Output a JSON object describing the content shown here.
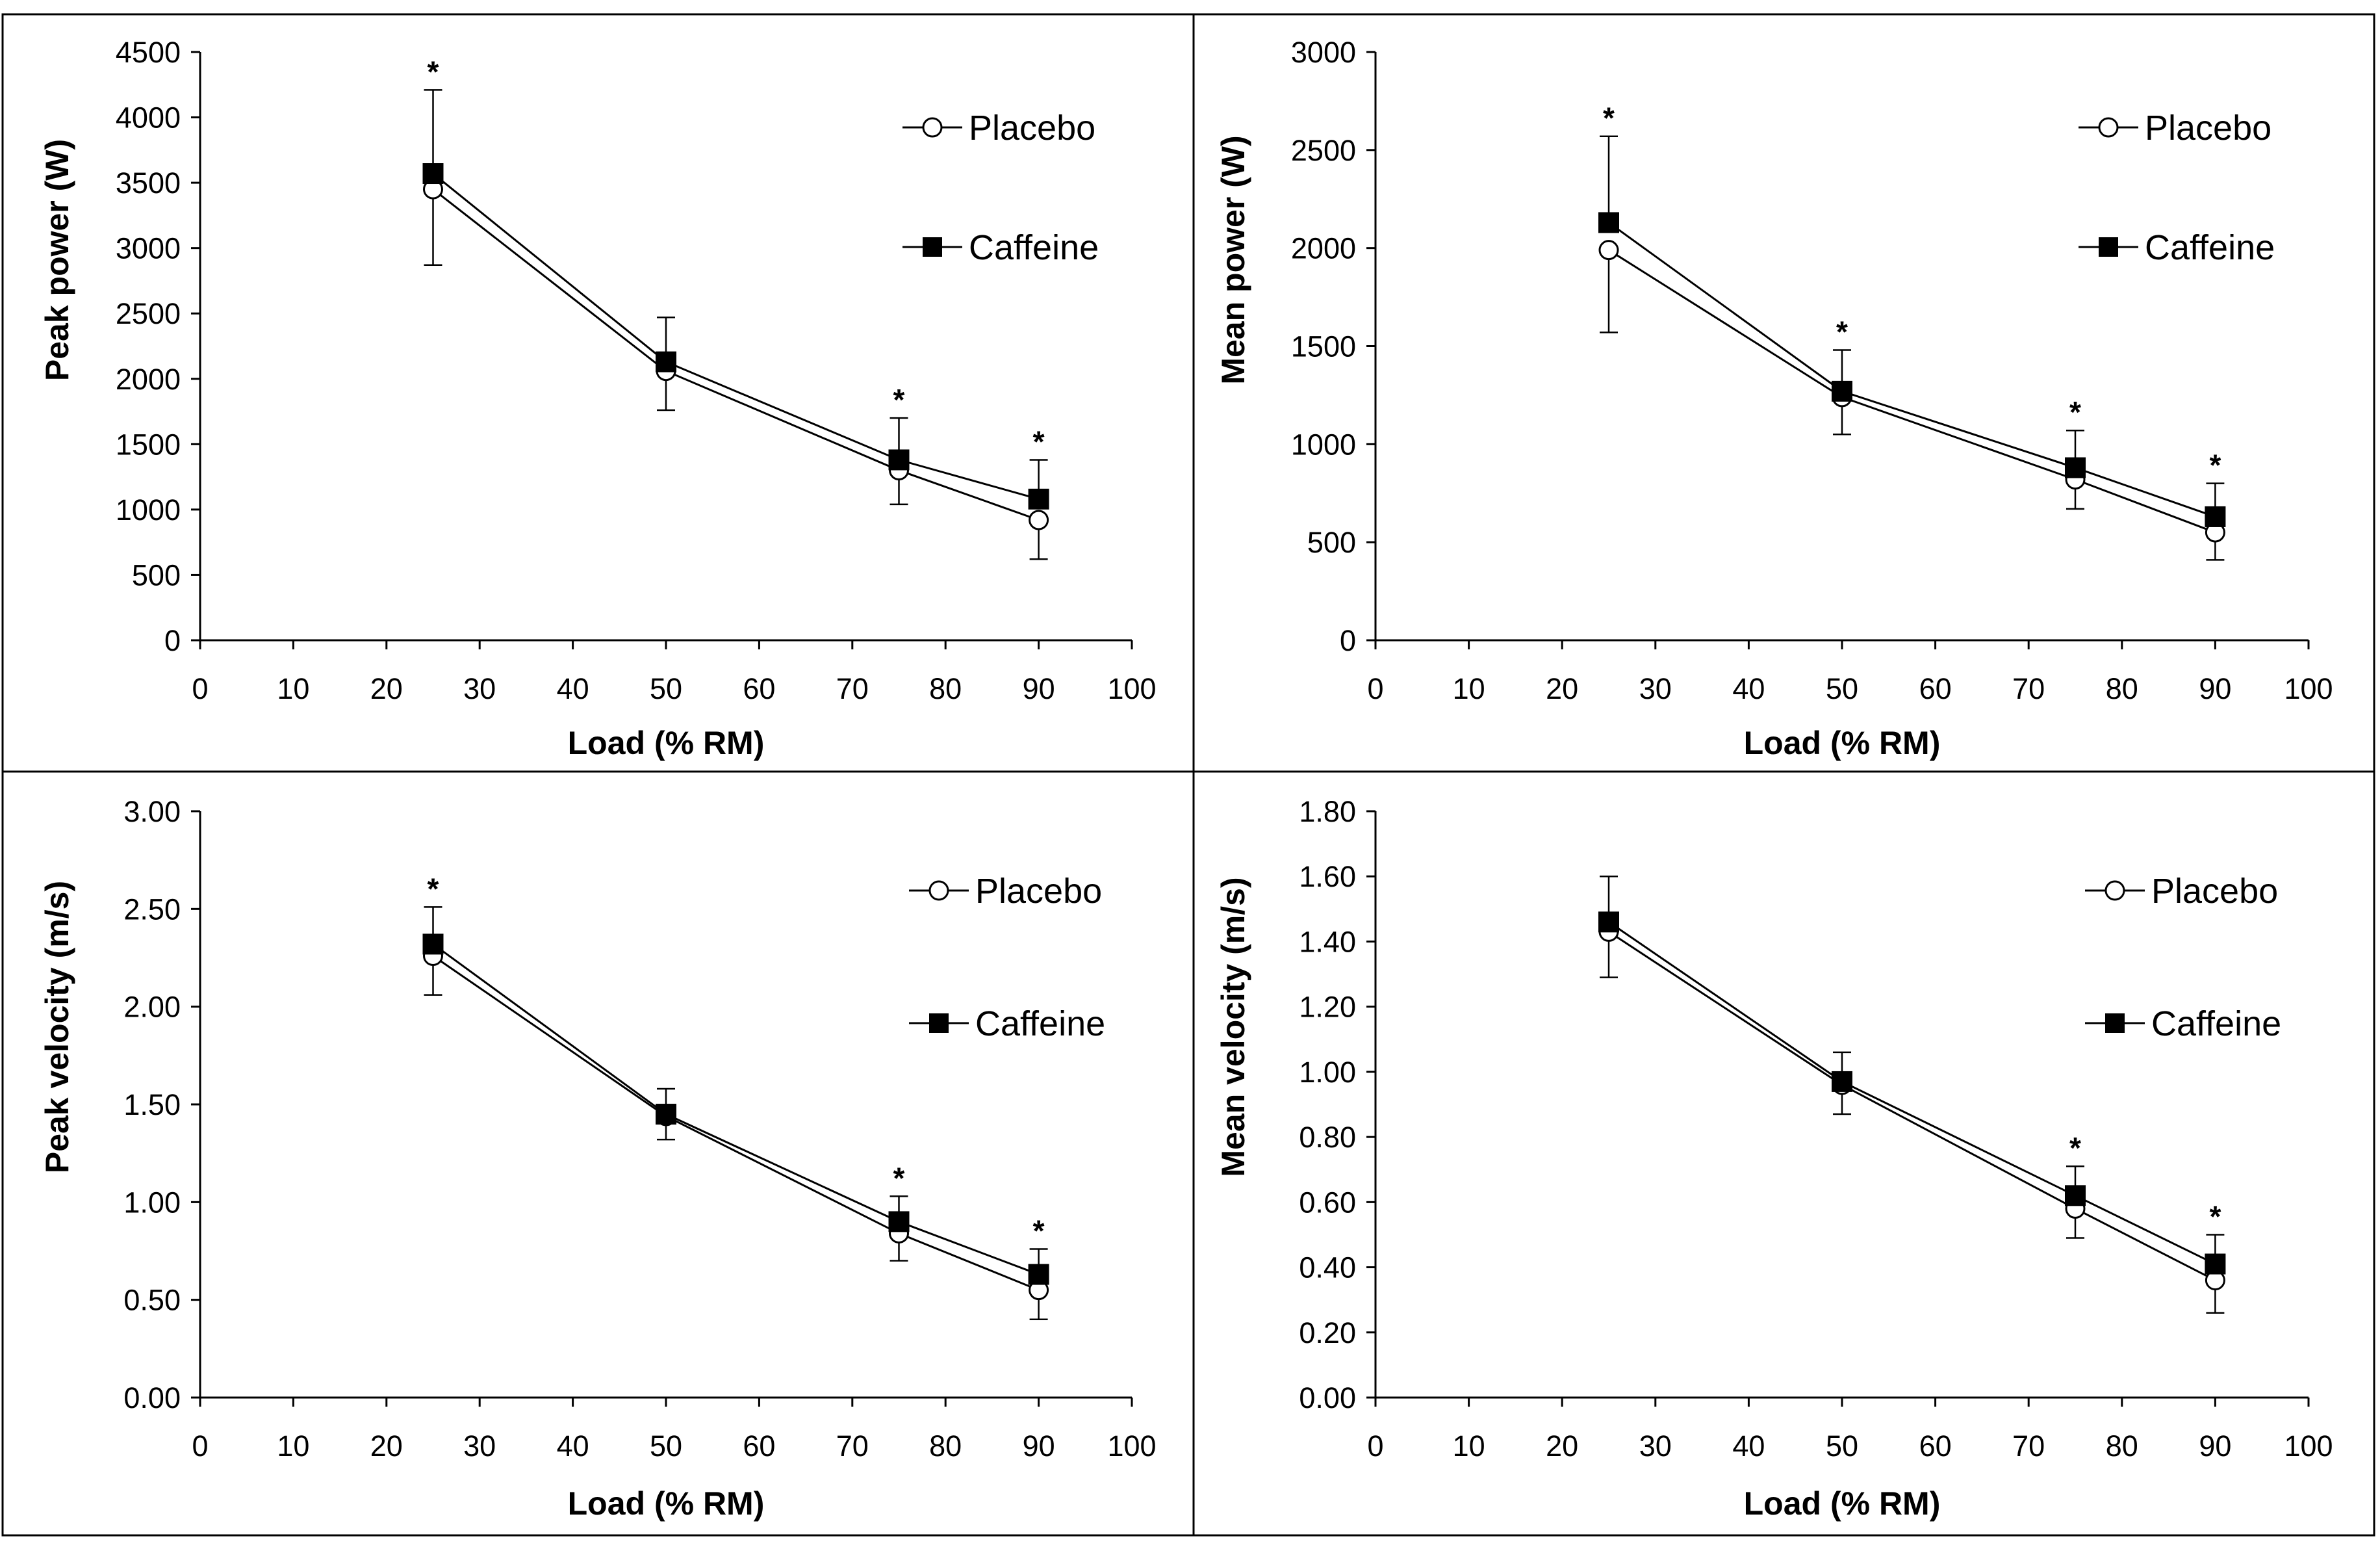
{
  "figure": {
    "marker_colors": {
      "placebo_fill": "#ffffff",
      "caffeine_fill": "#000000",
      "line": "#000000"
    }
  },
  "chart_data": [
    {
      "type": "line",
      "position": "top-left",
      "xlabel": "Load (% RM)",
      "ylabel": "Peak power (W)",
      "xlim": [
        0,
        100
      ],
      "ylim": [
        0,
        4500
      ],
      "x_ticks": [
        0,
        10,
        20,
        30,
        40,
        50,
        60,
        70,
        80,
        90,
        100
      ],
      "y_ticks": [
        0,
        500,
        1000,
        1500,
        2000,
        2500,
        3000,
        3500,
        4000,
        4500
      ],
      "y_tick_labels": [
        "0",
        "500",
        "1000",
        "1500",
        "2000",
        "2500",
        "3000",
        "3500",
        "4000",
        "4500"
      ],
      "legend_position": "top-right",
      "x": [
        25,
        50,
        75,
        90
      ],
      "series": [
        {
          "name": "Placebo",
          "marker": "open-circle",
          "values": [
            3450,
            2060,
            1300,
            920
          ],
          "error": [
            580,
            300,
            260,
            300
          ]
        },
        {
          "name": "Caffeine",
          "marker": "filled-square",
          "values": [
            3570,
            2130,
            1380,
            1080
          ],
          "error": [
            640,
            340,
            320,
            300
          ]
        }
      ],
      "significance_marker": "*",
      "significant_x": [
        25,
        75,
        90
      ]
    },
    {
      "type": "line",
      "position": "top-right",
      "xlabel": "Load (% RM)",
      "ylabel": "Mean power (W)",
      "xlim": [
        0,
        100
      ],
      "ylim": [
        0,
        3000
      ],
      "x_ticks": [
        0,
        10,
        20,
        30,
        40,
        50,
        60,
        70,
        80,
        90,
        100
      ],
      "y_ticks": [
        0,
        500,
        1000,
        1500,
        2000,
        2500,
        3000
      ],
      "y_tick_labels": [
        "0",
        "500",
        "1000",
        "1500",
        "2000",
        "2500",
        "3000"
      ],
      "legend_position": "top-right",
      "x": [
        25,
        50,
        75,
        90
      ],
      "series": [
        {
          "name": "Placebo",
          "marker": "open-circle",
          "values": [
            1990,
            1240,
            820,
            550
          ],
          "error": [
            420,
            190,
            150,
            140
          ]
        },
        {
          "name": "Caffeine",
          "marker": "filled-square",
          "values": [
            2130,
            1270,
            880,
            630
          ],
          "error": [
            440,
            210,
            190,
            170
          ]
        }
      ],
      "significance_marker": "*",
      "significant_x": [
        25,
        50,
        75,
        90
      ]
    },
    {
      "type": "line",
      "position": "bottom-left",
      "xlabel": "Load (% RM)",
      "ylabel": "Peak velocity (m/s)",
      "xlim": [
        0,
        100
      ],
      "ylim": [
        0,
        3
      ],
      "x_ticks": [
        0,
        10,
        20,
        30,
        40,
        50,
        60,
        70,
        80,
        90,
        100
      ],
      "y_ticks": [
        0,
        0.5,
        1,
        1.5,
        2,
        2.5,
        3
      ],
      "y_tick_labels": [
        "0.00",
        "0.50",
        "1.00",
        "1.50",
        "2.00",
        "2.50",
        "3.00"
      ],
      "legend_position": "top-right",
      "x": [
        25,
        50,
        75,
        90
      ],
      "series": [
        {
          "name": "Placebo",
          "marker": "open-circle",
          "values": [
            2.26,
            1.44,
            0.84,
            0.55
          ],
          "error": [
            0.2,
            0.12,
            0.14,
            0.15
          ]
        },
        {
          "name": "Caffeine",
          "marker": "filled-square",
          "values": [
            2.32,
            1.45,
            0.9,
            0.63
          ],
          "error": [
            0.19,
            0.13,
            0.13,
            0.13
          ]
        }
      ],
      "significance_marker": "*",
      "significant_x": [
        25,
        75,
        90
      ]
    },
    {
      "type": "line",
      "position": "bottom-right",
      "xlabel": "Load (% RM)",
      "ylabel": "Mean  velocity (m/s)",
      "xlim": [
        0,
        100
      ],
      "ylim": [
        0,
        1.8
      ],
      "x_ticks": [
        0,
        10,
        20,
        30,
        40,
        50,
        60,
        70,
        80,
        90,
        100
      ],
      "y_ticks": [
        0,
        0.2,
        0.4,
        0.6,
        0.8,
        1,
        1.2,
        1.4,
        1.6,
        1.8
      ],
      "y_tick_labels": [
        "0.00",
        "0.20",
        "0.40",
        "0.60",
        "0.80",
        "1.00",
        "1.20",
        "1.40",
        "1.60",
        "1.80"
      ],
      "legend_position": "top-right",
      "x": [
        25,
        50,
        75,
        90
      ],
      "series": [
        {
          "name": "Placebo",
          "marker": "open-circle",
          "values": [
            1.43,
            0.96,
            0.58,
            0.36
          ],
          "error": [
            0.14,
            0.09,
            0.09,
            0.1
          ]
        },
        {
          "name": "Caffeine",
          "marker": "filled-square",
          "values": [
            1.46,
            0.97,
            0.62,
            0.41
          ],
          "error": [
            0.14,
            0.09,
            0.09,
            0.09
          ]
        }
      ],
      "significance_marker": "*",
      "significant_x": [
        75,
        90
      ]
    }
  ]
}
